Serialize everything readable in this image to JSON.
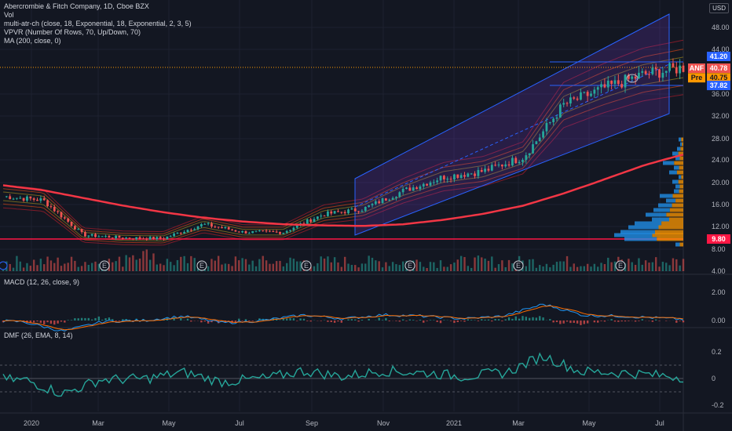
{
  "legend": {
    "title": "Abercrombie & Fitch Company, 1D, Cboe BZX",
    "vol": "Vol",
    "atr": "multi-atr-ch (close, 18, Exponential, 18, Exponential, 2, 3, 5)",
    "vpvr": "VPVR (Number Of Rows, 70, Up/Down, 70)",
    "ma": "MA (200, close, 0)"
  },
  "currency": "USD",
  "macd_label": "MACD (12, 26, close, 9)",
  "dmf_label": "DMF (26, EMA, 8, 14)",
  "price_axis": {
    "ticks": [
      "48.00",
      "44.00",
      "36.00",
      "32.00",
      "28.00",
      "24.00",
      "20.00",
      "16.00",
      "12.00",
      "8.00",
      "4.00"
    ]
  },
  "badges": {
    "upper": "41.20",
    "anf_tag": "ANF",
    "anf_value": "40.78",
    "pre_tag": "Pre",
    "pre_value": "40.75",
    "lower": "37.82",
    "support": "9.80"
  },
  "macd_axis": [
    "2.00",
    "0.00"
  ],
  "dmf_axis": [
    "0.2",
    "0",
    "-0.2"
  ],
  "x_axis": [
    "2020",
    "Mar",
    "May",
    "Jul",
    "Sep",
    "Nov",
    "2021",
    "Mar",
    "May",
    "Jul"
  ],
  "event_marks": [
    "E",
    "E",
    "E",
    "E",
    "E",
    "E",
    "E"
  ],
  "colors": {
    "up": "#26a69a",
    "down": "#ef5350",
    "ma": "#f23645",
    "support": "#ff1744",
    "channel": "#2962ff",
    "vpvr_up": "#2196f3",
    "vpvr_down": "#ff9800",
    "macd": "#2196f3",
    "signal": "#ff6d00",
    "dmf": "#26a69a"
  },
  "chart_data": {
    "type": "line",
    "title": "Abercrombie & Fitch Company, 1D, Cboe BZX",
    "x": [
      "2020-01",
      "2020-02",
      "2020-03",
      "2020-04",
      "2020-05",
      "2020-06",
      "2020-07",
      "2020-08",
      "2020-09",
      "2020-10",
      "2020-11",
      "2020-12",
      "2021-01",
      "2021-02",
      "2021-03",
      "2021-04",
      "2021-05",
      "2021-06"
    ],
    "series": [
      {
        "name": "ANF",
        "values": [
          17.5,
          16.8,
          10.5,
          10.0,
          9.9,
          12.4,
          11.0,
          11.0,
          14.2,
          15.2,
          18.5,
          21.0,
          22.0,
          24.5,
          34.0,
          37.0,
          39.5,
          40.78
        ]
      },
      {
        "name": "MA (200, close, 0)",
        "values": [
          19.5,
          18.6,
          17.2,
          15.8,
          14.6,
          13.6,
          12.9,
          12.4,
          12.2,
          12.1,
          12.4,
          13.2,
          14.3,
          15.8,
          18.0,
          20.5,
          23.0,
          25.0
        ]
      }
    ],
    "ylim": [
      4,
      52
    ],
    "support_level": 9.8
  }
}
